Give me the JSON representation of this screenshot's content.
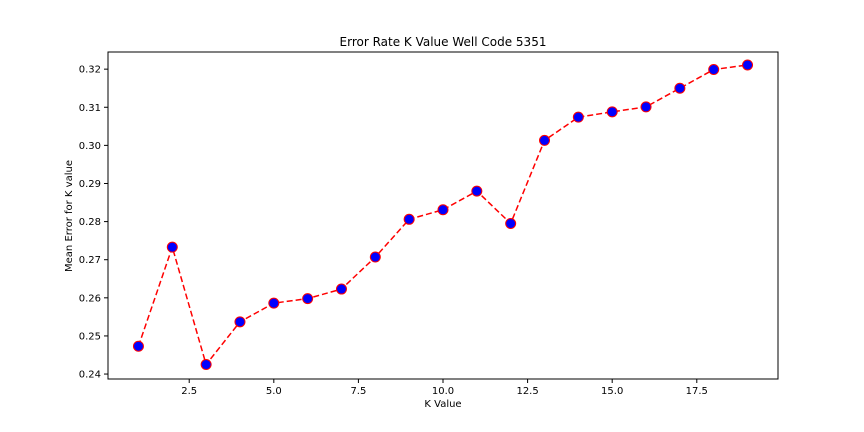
{
  "chart_data": {
    "type": "line",
    "title": "Error Rate K Value Well Code 5351",
    "xlabel": "K Value",
    "ylabel": "Mean Error for K value",
    "xlim": [
      0.1,
      19.9
    ],
    "ylim": [
      0.2387,
      0.3245
    ],
    "xticks": [
      2.5,
      5.0,
      7.5,
      10.0,
      12.5,
      15.0,
      17.5
    ],
    "xtick_labels": [
      "2.5",
      "5.0",
      "7.5",
      "10.0",
      "12.5",
      "15.0",
      "17.5"
    ],
    "yticks": [
      0.24,
      0.25,
      0.26,
      0.27,
      0.28,
      0.29,
      0.3,
      0.31,
      0.32
    ],
    "ytick_labels": [
      "0.24",
      "0.25",
      "0.26",
      "0.27",
      "0.28",
      "0.29",
      "0.30",
      "0.31",
      "0.32"
    ],
    "grid": false,
    "legend": "none",
    "line_color": "#ff0000",
    "line_style": "dashed",
    "marker_face_color": "#0000ff",
    "marker_edge_color": "#ff0000",
    "series": [
      {
        "x": [
          1,
          2,
          3,
          4,
          5,
          6,
          7,
          8,
          9,
          10,
          11,
          12,
          13,
          14,
          15,
          16,
          17,
          18,
          19
        ],
        "values": [
          0.2473,
          0.2733,
          0.2425,
          0.2537,
          0.2586,
          0.2598,
          0.2623,
          0.2707,
          0.2806,
          0.2831,
          0.288,
          0.2795,
          0.3013,
          0.3074,
          0.3088,
          0.3101,
          0.315,
          0.3199,
          0.3211
        ]
      }
    ]
  }
}
